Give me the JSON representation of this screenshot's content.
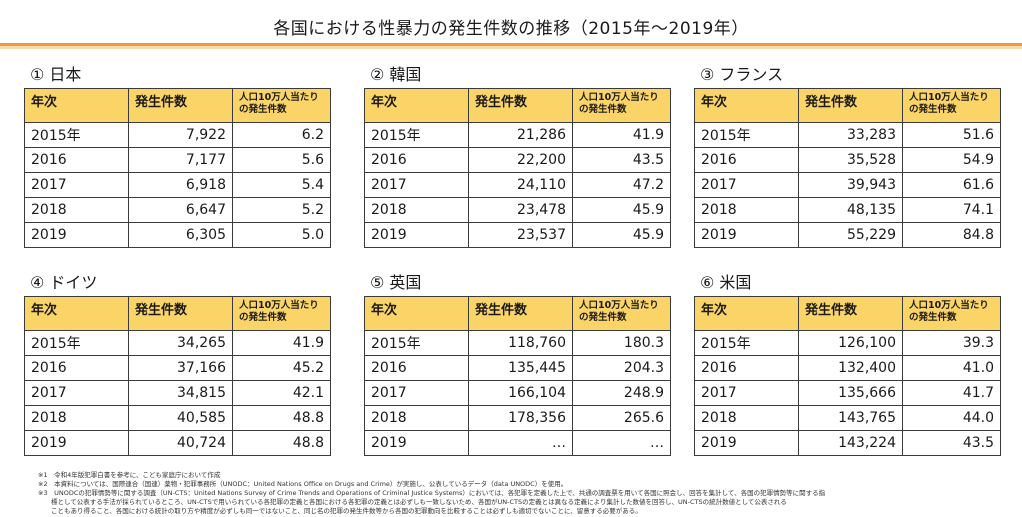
{
  "title": "各国における性暴力の発生件数の推移（2015年～2019年）",
  "headers": [
    "年次",
    "発生件数",
    "人口10万人当たりの発生件数"
  ],
  "countries": [
    {
      "label": "① 日本",
      "rows": [
        {
          "year": "2015年",
          "count": "7,922",
          "rate": "6.2"
        },
        {
          "year": "2016",
          "count": "7,177",
          "rate": "5.6"
        },
        {
          "year": "2017",
          "count": "6,918",
          "rate": "5.4"
        },
        {
          "year": "2018",
          "count": "6,647",
          "rate": "5.2"
        },
        {
          "year": "2019",
          "count": "6,305",
          "rate": "5.0"
        }
      ]
    },
    {
      "label": "② 韓国",
      "rows": [
        {
          "year": "2015年",
          "count": "21,286",
          "rate": "41.9"
        },
        {
          "year": "2016",
          "count": "22,200",
          "rate": "43.5"
        },
        {
          "year": "2017",
          "count": "24,110",
          "rate": "47.2"
        },
        {
          "year": "2018",
          "count": "23,478",
          "rate": "45.9"
        },
        {
          "year": "2019",
          "count": "23,537",
          "rate": "45.9"
        }
      ]
    },
    {
      "label": "③ フランス",
      "rows": [
        {
          "year": "2015年",
          "count": "33,283",
          "rate": "51.6"
        },
        {
          "year": "2016",
          "count": "35,528",
          "rate": "54.9"
        },
        {
          "year": "2017",
          "count": "39,943",
          "rate": "61.6"
        },
        {
          "year": "2018",
          "count": "48,135",
          "rate": "74.1"
        },
        {
          "year": "2019",
          "count": "55,229",
          "rate": "84.8"
        }
      ]
    },
    {
      "label": "④ ドイツ",
      "rows": [
        {
          "year": "2015年",
          "count": "34,265",
          "rate": "41.9"
        },
        {
          "year": "2016",
          "count": "37,166",
          "rate": "45.2"
        },
        {
          "year": "2017",
          "count": "34,815",
          "rate": "42.1"
        },
        {
          "year": "2018",
          "count": "40,585",
          "rate": "48.8"
        },
        {
          "year": "2019",
          "count": "40,724",
          "rate": "48.8"
        }
      ]
    },
    {
      "label": "⑤ 英国",
      "rows": [
        {
          "year": "2015年",
          "count": "118,760",
          "rate": "180.3"
        },
        {
          "year": "2016",
          "count": "135,445",
          "rate": "204.3"
        },
        {
          "year": "2017",
          "count": "166,104",
          "rate": "248.9"
        },
        {
          "year": "2018",
          "count": "178,356",
          "rate": "265.6"
        },
        {
          "year": "2019",
          "count": "…",
          "rate": "…"
        }
      ]
    },
    {
      "label": "⑥ 米国",
      "rows": [
        {
          "year": "2015年",
          "count": "126,100",
          "rate": "39.3"
        },
        {
          "year": "2016",
          "count": "132,400",
          "rate": "41.0"
        },
        {
          "year": "2017",
          "count": "135,666",
          "rate": "41.7"
        },
        {
          "year": "2018",
          "count": "143,765",
          "rate": "44.0"
        },
        {
          "year": "2019",
          "count": "143,224",
          "rate": "43.5"
        }
      ]
    }
  ],
  "notes": [
    "※1　令和4年版犯罪白書を参考に、こども家庭庁において作成",
    "※2　本資料については、国際連合（国連）薬物・犯罪事務所（UNODC：United Nations Office on Drugs and Crime）が実施し、公表しているデータ（data UNODC）を使用。",
    "※3　UNODCの犯罪情勢等に関する調査（UN-CTS：United Nations Survey of Crime Trends and Operations of Criminal Justice Systems）においては、各犯罪を定義した上で、共通の調査票を用いて各国に照会し、回答を集計して、各国の犯罪情勢等に関する指",
    "　　標として公表する手法が採られているところ、UN-CTSで用いられている各犯罪の定義と各国における各犯罪の定義とは必ずしも一致しないため、各国がUN-CTSの定義とは異なる定義により集計した数値を回答し、UN-CTSの統計数値として公表される",
    "　　こともあり得ること、各国における統計の取り方や精度が必ずしも同一ではないこと、同じ名の犯罪の発生件数等から各国の犯罪動向を比較することは必ずしも適切でないことに、留意する必要がある。"
  ]
}
